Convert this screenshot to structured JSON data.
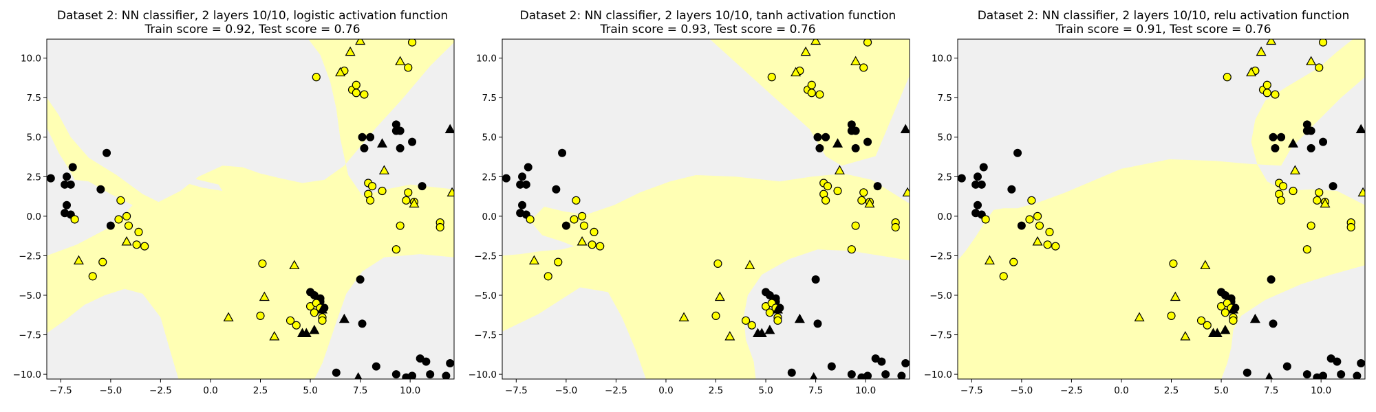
{
  "colors": {
    "region_class0": "#f0f0f0",
    "region_class1": "#ffffb4",
    "point_class0": "#000000",
    "point_class1": "#ffff00",
    "edge": "#000000"
  },
  "chart_data": [
    {
      "type": "scatter",
      "title": [
        "Dataset 2: NN classifier, 2 layers 10/10, logistic activation function",
        "Train score = 0.92, Test score = 0.76"
      ],
      "xlim": [
        -8.2,
        12.2
      ],
      "ylim": [
        -10.3,
        11.2
      ],
      "xticks": [
        -7.5,
        -5.0,
        -2.5,
        0.0,
        2.5,
        5.0,
        7.5,
        10.0
      ],
      "yticks": [
        -10.0,
        -7.5,
        -5.0,
        -2.5,
        0.0,
        2.5,
        5.0,
        7.5,
        10.0
      ],
      "grid": false,
      "legend": "none"
    },
    {
      "type": "scatter",
      "title": [
        "Dataset 2: NN classifier, 2 layers 10/10, tanh activation function",
        "Train score = 0.93, Test score = 0.76"
      ],
      "xlim": [
        -8.2,
        12.2
      ],
      "ylim": [
        -10.3,
        11.2
      ],
      "xticks": [
        -7.5,
        -5.0,
        -2.5,
        0.0,
        2.5,
        5.0,
        7.5,
        10.0
      ],
      "yticks": [
        -10.0,
        -7.5,
        -5.0,
        -2.5,
        0.0,
        2.5,
        5.0,
        7.5,
        10.0
      ],
      "grid": false,
      "legend": "none"
    },
    {
      "type": "scatter",
      "title": [
        "Dataset 2: NN classifier, 2 layers 10/10, relu activation function",
        "Train score = 0.91, Test score = 0.76"
      ],
      "xlim": [
        -8.2,
        12.2
      ],
      "ylim": [
        -10.3,
        11.2
      ],
      "xticks": [
        -7.5,
        -5.0,
        -2.5,
        0.0,
        2.5,
        5.0,
        7.5,
        10.0
      ],
      "yticks": [
        -10.0,
        -7.5,
        -5.0,
        -2.5,
        0.0,
        2.5,
        5.0,
        7.5,
        10.0
      ],
      "grid": false,
      "legend": "none"
    }
  ],
  "points": {
    "train_class0": [
      [
        -8.0,
        2.4
      ],
      [
        -7.2,
        2.5
      ],
      [
        -6.9,
        3.1
      ],
      [
        -7.3,
        2.0
      ],
      [
        -7.0,
        2.0
      ],
      [
        -7.3,
        0.2
      ],
      [
        -7.2,
        0.7
      ],
      [
        -7.0,
        0.1
      ],
      [
        -5.5,
        1.7
      ],
      [
        -5.2,
        4.0
      ],
      [
        -5.0,
        -0.6
      ],
      [
        5.0,
        -4.8
      ],
      [
        5.5,
        -5.2
      ],
      [
        5.5,
        -5.4
      ],
      [
        5.2,
        -5.0
      ],
      [
        5.7,
        -5.8
      ],
      [
        7.5,
        -4.0
      ],
      [
        7.6,
        -6.8
      ],
      [
        7.6,
        5.0
      ],
      [
        8.0,
        5.0
      ],
      [
        7.7,
        4.3
      ],
      [
        9.3,
        5.8
      ],
      [
        9.3,
        5.4
      ],
      [
        9.5,
        5.4
      ],
      [
        9.5,
        4.3
      ],
      [
        10.1,
        4.7
      ],
      [
        10.6,
        1.9
      ],
      [
        8.3,
        -9.5
      ],
      [
        9.3,
        -10.0
      ],
      [
        9.8,
        -10.2
      ],
      [
        10.0,
        -10.3
      ],
      [
        10.1,
        -10.1
      ],
      [
        10.5,
        -9.0
      ],
      [
        10.8,
        -9.2
      ],
      [
        11.0,
        -10.0
      ],
      [
        11.8,
        -10.1
      ],
      [
        12.0,
        -9.3
      ],
      [
        6.3,
        -9.9
      ]
    ],
    "train_class1": [
      [
        -6.8,
        -0.2
      ],
      [
        -5.9,
        -3.8
      ],
      [
        -5.4,
        -2.9
      ],
      [
        -4.6,
        -0.2
      ],
      [
        -4.5,
        1.0
      ],
      [
        -4.2,
        0.0
      ],
      [
        -4.1,
        -0.6
      ],
      [
        -3.6,
        -1.0
      ],
      [
        -3.7,
        -1.8
      ],
      [
        -3.3,
        -1.9
      ],
      [
        2.6,
        -3.0
      ],
      [
        2.5,
        -6.3
      ],
      [
        4.0,
        -6.6
      ],
      [
        4.3,
        -6.9
      ],
      [
        5.0,
        -5.7
      ],
      [
        5.3,
        -5.5
      ],
      [
        5.2,
        -6.1
      ],
      [
        5.5,
        -5.8
      ],
      [
        5.6,
        -6.4
      ],
      [
        5.6,
        -6.6
      ],
      [
        5.3,
        8.8
      ],
      [
        6.7,
        9.2
      ],
      [
        7.1,
        8.0
      ],
      [
        7.3,
        8.3
      ],
      [
        7.3,
        7.8
      ],
      [
        7.7,
        7.7
      ],
      [
        9.9,
        9.4
      ],
      [
        10.1,
        11.0
      ],
      [
        7.9,
        2.1
      ],
      [
        7.9,
        1.4
      ],
      [
        8.0,
        1.0
      ],
      [
        8.6,
        1.6
      ],
      [
        8.1,
        1.9
      ],
      [
        9.9,
        1.5
      ],
      [
        9.8,
        1.0
      ],
      [
        10.2,
        0.9
      ],
      [
        9.5,
        -0.6
      ],
      [
        9.3,
        -2.1
      ],
      [
        11.5,
        -0.4
      ],
      [
        11.5,
        -0.7
      ]
    ],
    "test_class0": [
      [
        4.6,
        -7.4
      ],
      [
        4.8,
        -7.4
      ],
      [
        5.6,
        -5.9
      ],
      [
        6.7,
        -6.5
      ],
      [
        5.2,
        -7.2
      ],
      [
        7.4,
        -10.2
      ],
      [
        8.6,
        4.6
      ],
      [
        12.0,
        5.5
      ]
    ],
    "test_class1": [
      [
        -6.6,
        -2.8
      ],
      [
        -4.2,
        -1.6
      ],
      [
        0.9,
        -6.4
      ],
      [
        2.7,
        -5.1
      ],
      [
        3.2,
        -7.6
      ],
      [
        4.2,
        -3.1
      ],
      [
        6.5,
        9.1
      ],
      [
        7.0,
        10.4
      ],
      [
        7.5,
        11.1
      ],
      [
        8.7,
        2.9
      ],
      [
        9.5,
        9.8
      ],
      [
        10.2,
        0.8
      ],
      [
        12.1,
        1.5
      ]
    ]
  }
}
